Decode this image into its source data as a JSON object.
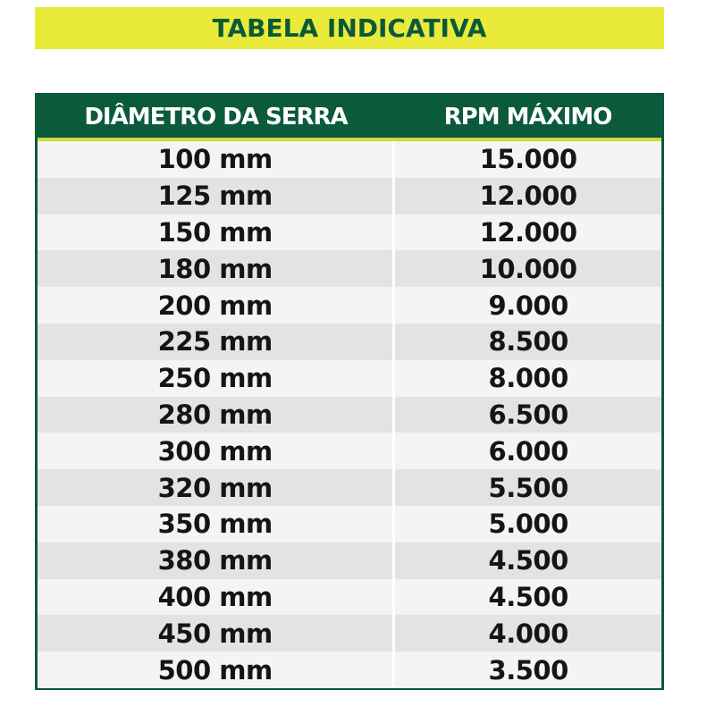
{
  "banner": {
    "title": "TABELA INDICATIVA"
  },
  "table": {
    "headers": [
      "DIÂMETRO DA SERRA",
      "RPM MÁXIMO"
    ],
    "rows": [
      [
        "100 mm",
        "15.000"
      ],
      [
        "125 mm",
        "12.000"
      ],
      [
        "150 mm",
        "12.000"
      ],
      [
        "180 mm",
        "10.000"
      ],
      [
        "200 mm",
        "9.000"
      ],
      [
        "225 mm",
        "8.500"
      ],
      [
        "250 mm",
        "8.000"
      ],
      [
        "280 mm",
        "6.500"
      ],
      [
        "300 mm",
        "6.000"
      ],
      [
        "320 mm",
        "5.500"
      ],
      [
        "350 mm",
        "5.000"
      ],
      [
        "380 mm",
        "4.500"
      ],
      [
        "400 mm",
        "4.500"
      ],
      [
        "450 mm",
        "4.000"
      ],
      [
        "500 mm",
        "3.500"
      ]
    ]
  },
  "colors": {
    "banner_bg": "#eaea3a",
    "title_text": "#0a5a3a",
    "header_bg": "#0b5a3c",
    "header_accent": "#c9dc3a",
    "row_light": "#f4f4f4",
    "row_dark": "#e3e3e3"
  }
}
